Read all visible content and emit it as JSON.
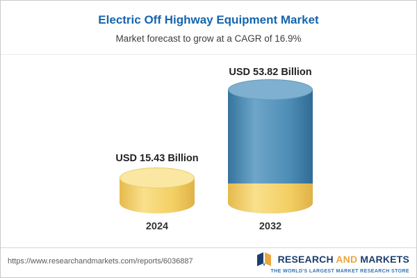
{
  "header": {
    "title": "Electric Off Highway Equipment Market",
    "subtitle": "Market forecast to grow at a CAGR of 16.9%"
  },
  "chart_data": {
    "type": "bar",
    "categories": [
      "2024",
      "2032"
    ],
    "values": [
      15.43,
      53.82
    ],
    "value_labels": [
      "USD 15.43 Billion",
      "USD 53.82 Billion"
    ],
    "title": "Electric Off Highway Equipment Market",
    "subtitle": "Market forecast to grow at a CAGR of 16.9%",
    "unit": "USD Billion",
    "cagr": "16.9%",
    "bar_colors": [
      "#f3cf63",
      "#4e8db6"
    ],
    "bar_style": "3d-cylinder",
    "legend": "none",
    "grid": false,
    "ylim": [
      0,
      60
    ]
  },
  "footer": {
    "url": "https://www.researchandmarkets.com/reports/6036887",
    "brand": {
      "word1": "RESEARCH",
      "word2": "AND",
      "word3": "MARKETS",
      "tagline": "THE WORLD'S LARGEST MARKET RESEARCH STORE"
    }
  },
  "colors": {
    "title_blue": "#1565ad",
    "bar_yellow": "#f3cf63",
    "bar_blue": "#4e8db6",
    "brand_navy": "#1c3e6e",
    "brand_gold": "#eba63f"
  }
}
